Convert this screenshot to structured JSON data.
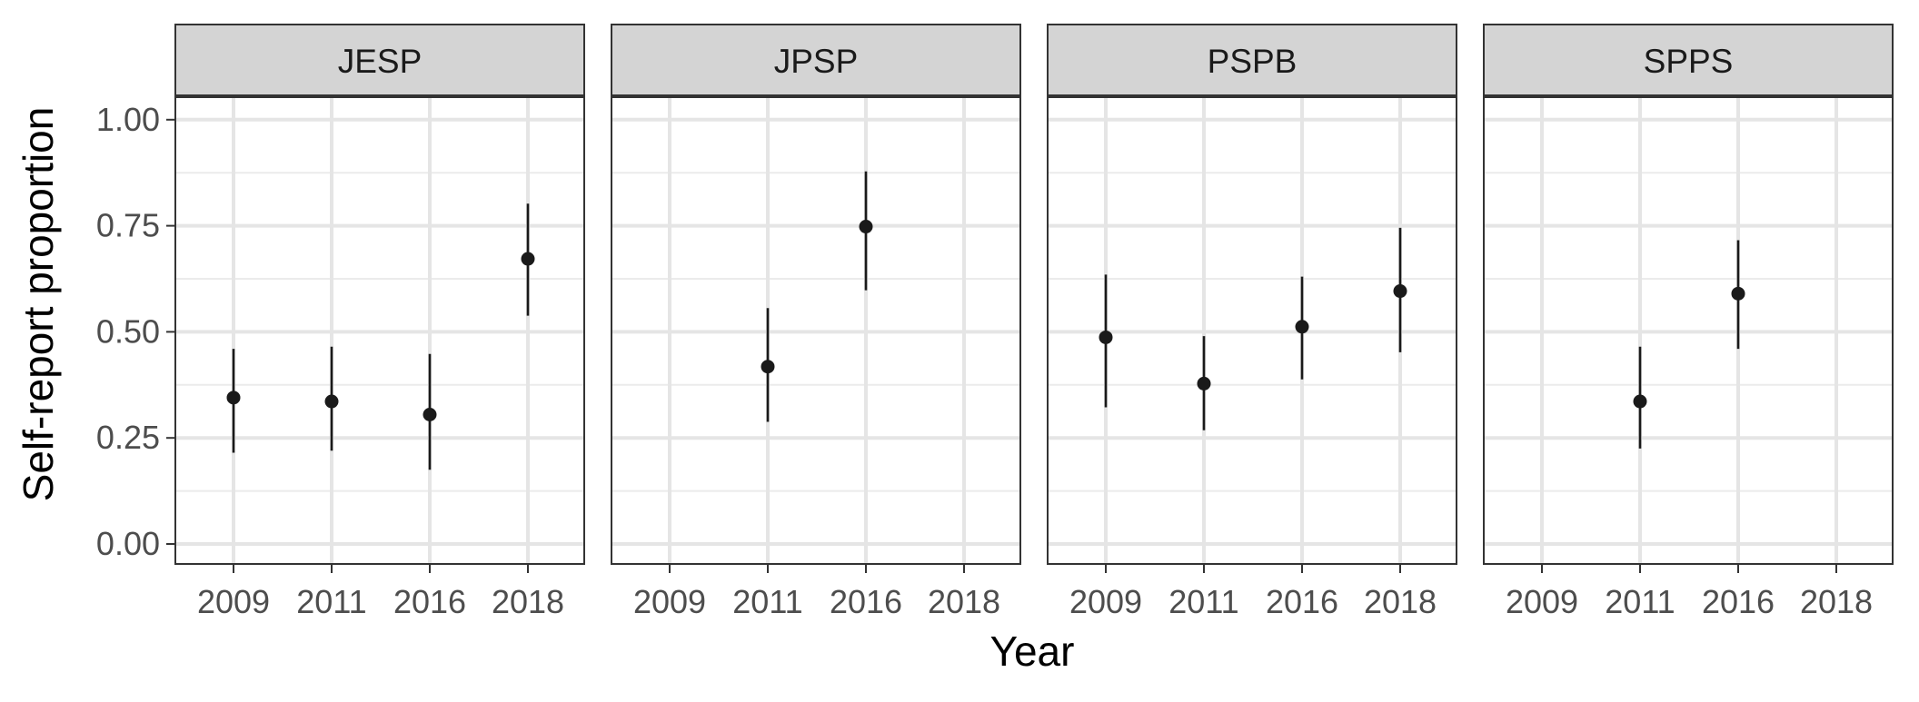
{
  "chart_data": {
    "type": "scatter",
    "subtype": "faceted point estimates with error bars",
    "title": "",
    "xlabel": "Year",
    "ylabel": "Self-report proportion",
    "x_categories": [
      "2009",
      "2011",
      "2016",
      "2018"
    ],
    "ylim": [
      -0.04,
      1.05
    ],
    "y_ticks": [
      "0.00",
      "0.25",
      "0.50",
      "0.75",
      "1.00"
    ],
    "grid": true,
    "legend": "none",
    "point_color": "#1a1a1a",
    "facets": [
      {
        "name": "JESP",
        "points": [
          {
            "x": "2009",
            "y": 0.345,
            "ymin": 0.215,
            "ymax": 0.46
          },
          {
            "x": "2011",
            "y": 0.336,
            "ymin": 0.22,
            "ymax": 0.465
          },
          {
            "x": "2016",
            "y": 0.305,
            "ymin": 0.175,
            "ymax": 0.448
          },
          {
            "x": "2018",
            "y": 0.672,
            "ymin": 0.538,
            "ymax": 0.802
          }
        ]
      },
      {
        "name": "JPSP",
        "points": [
          {
            "x": "2011",
            "y": 0.418,
            "ymin": 0.288,
            "ymax": 0.556
          },
          {
            "x": "2016",
            "y": 0.748,
            "ymin": 0.598,
            "ymax": 0.878
          }
        ]
      },
      {
        "name": "PSPB",
        "points": [
          {
            "x": "2009",
            "y": 0.487,
            "ymin": 0.322,
            "ymax": 0.635
          },
          {
            "x": "2011",
            "y": 0.378,
            "ymin": 0.268,
            "ymax": 0.49
          },
          {
            "x": "2016",
            "y": 0.512,
            "ymin": 0.388,
            "ymax": 0.63
          },
          {
            "x": "2018",
            "y": 0.596,
            "ymin": 0.452,
            "ymax": 0.745
          }
        ]
      },
      {
        "name": "SPPS",
        "points": [
          {
            "x": "2011",
            "y": 0.336,
            "ymin": 0.225,
            "ymax": 0.465
          },
          {
            "x": "2016",
            "y": 0.59,
            "ymin": 0.46,
            "ymax": 0.716
          }
        ]
      }
    ]
  }
}
